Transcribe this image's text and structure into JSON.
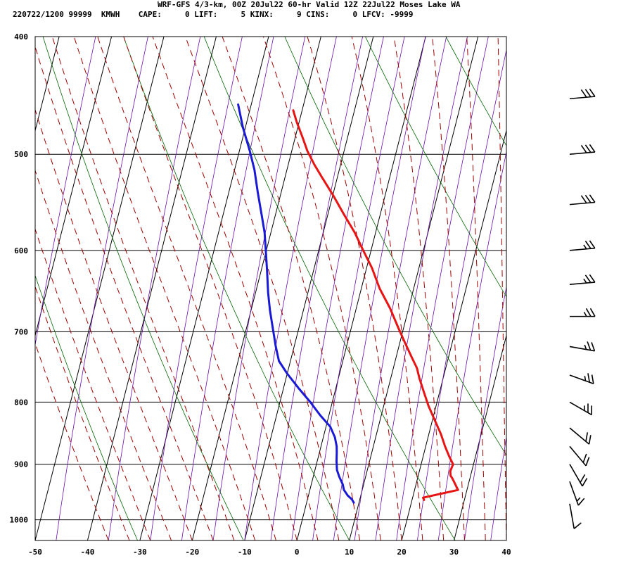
{
  "header": {
    "line1": "WRF-GFS 4/3-km, 00Z 20Jul22 60-hr Valid 12Z 22Jul22 Moses Lake WA",
    "line2": "220722/1200 99999  KMWH    CAPE:     0 LIFT:     5 KINX:     9 CINS:     0 LFCV: -9999"
  },
  "chart_data": {
    "type": "line",
    "subtype": "skew-T log-P sounding",
    "title": "WRF-GFS 4/3-km, 00Z 20Jul22 60-hr Valid 12Z 22Jul22 Moses Lake WA",
    "xlabel": "",
    "ylabel": "",
    "x_range": [
      -50,
      40
    ],
    "y_range": [
      400,
      1040
    ],
    "y_scale": "log-pressure",
    "x_ticks": [
      -50,
      -40,
      -30,
      -20,
      -10,
      0,
      10,
      20,
      30,
      40
    ],
    "y_ticks": [
      400,
      500,
      600,
      700,
      800,
      900,
      1000
    ],
    "grid": true,
    "colors": {
      "temperature": "#e81414",
      "dewpoint": "#1a1ad6",
      "isotherms": "#6a0dad",
      "dry_adiabats": "#006400",
      "moist_adiabats": "#a00000",
      "wind_barbs": "#000000"
    },
    "series": [
      {
        "key": "temperature",
        "points": [
          [
            -21.7,
            460
          ],
          [
            -20.5,
            470
          ],
          [
            -18.5,
            485
          ],
          [
            -17,
            497
          ],
          [
            -15,
            510
          ],
          [
            -13,
            522
          ],
          [
            -10,
            540
          ],
          [
            -7,
            560
          ],
          [
            -4,
            580
          ],
          [
            -1.5,
            600
          ],
          [
            1,
            620
          ],
          [
            3.5,
            645
          ],
          [
            6.5,
            670
          ],
          [
            9,
            695
          ],
          [
            11,
            715
          ],
          [
            13,
            735
          ],
          [
            14.5,
            750
          ],
          [
            15.5,
            765
          ],
          [
            17,
            785
          ],
          [
            18.5,
            805
          ],
          [
            20.2,
            825
          ],
          [
            22.3,
            850
          ],
          [
            23.7,
            870
          ],
          [
            25,
            887
          ],
          [
            26.1,
            900
          ],
          [
            25.9,
            912
          ],
          [
            26.2,
            920
          ],
          [
            26.7,
            925
          ],
          [
            28.3,
            945
          ],
          [
            22,
            959
          ],
          [
            22.3,
            963
          ]
        ]
      },
      {
        "key": "dewpoint",
        "points": [
          [
            -32.5,
            455
          ],
          [
            -30.5,
            475
          ],
          [
            -28,
            497
          ],
          [
            -26.2,
            515
          ],
          [
            -24.5,
            537
          ],
          [
            -22.7,
            560
          ],
          [
            -21.2,
            580
          ],
          [
            -20.1,
            600
          ],
          [
            -18.8,
            625
          ],
          [
            -17.6,
            650
          ],
          [
            -16.4,
            672
          ],
          [
            -15,
            695
          ],
          [
            -13.5,
            720
          ],
          [
            -12.2,
            740
          ],
          [
            -10,
            758
          ],
          [
            -7,
            780
          ],
          [
            -4.2,
            800
          ],
          [
            -1.7,
            820
          ],
          [
            0.8,
            838
          ],
          [
            2.2,
            855
          ],
          [
            3,
            870
          ],
          [
            3.3,
            880
          ],
          [
            3.7,
            895
          ],
          [
            4.2,
            910
          ],
          [
            5,
            922
          ],
          [
            6,
            935
          ],
          [
            6.5,
            945
          ],
          [
            7.5,
            955
          ],
          [
            8.5,
            962
          ],
          [
            9,
            968
          ]
        ]
      }
    ],
    "wind_barbs": [
      {
        "p": 450,
        "dir": 265,
        "kt": 30
      },
      {
        "p": 500,
        "dir": 265,
        "kt": 30
      },
      {
        "p": 550,
        "dir": 265,
        "kt": 30
      },
      {
        "p": 600,
        "dir": 265,
        "kt": 25
      },
      {
        "p": 640,
        "dir": 265,
        "kt": 25
      },
      {
        "p": 680,
        "dir": 270,
        "kt": 25
      },
      {
        "p": 720,
        "dir": 280,
        "kt": 25
      },
      {
        "p": 760,
        "dir": 290,
        "kt": 25
      },
      {
        "p": 800,
        "dir": 300,
        "kt": 25
      },
      {
        "p": 840,
        "dir": 310,
        "kt": 20
      },
      {
        "p": 870,
        "dir": 320,
        "kt": 20
      },
      {
        "p": 900,
        "dir": 330,
        "kt": 20
      },
      {
        "p": 930,
        "dir": 340,
        "kt": 15
      },
      {
        "p": 970,
        "dir": 350,
        "kt": 10
      }
    ]
  }
}
